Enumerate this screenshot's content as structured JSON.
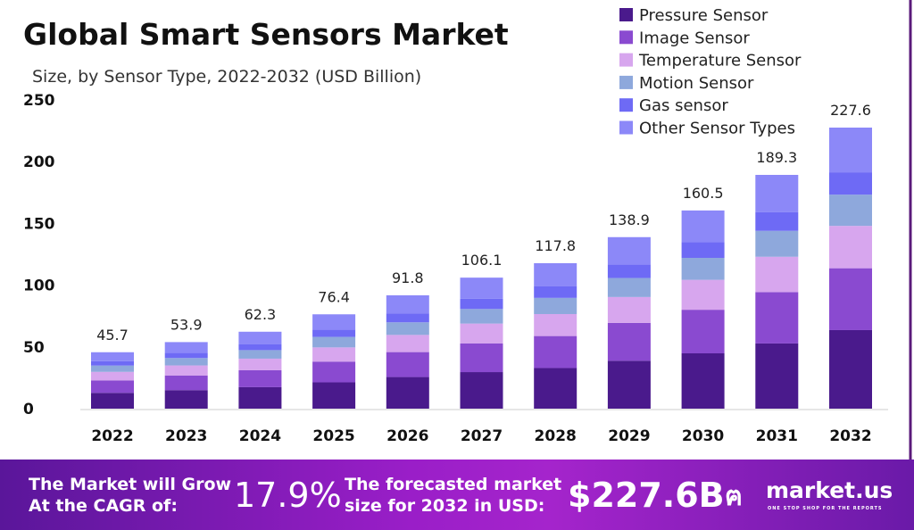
{
  "chart_data": {
    "type": "bar",
    "stacked": true,
    "title": "Global Smart Sensors Market",
    "subtitle": "Size, by Sensor Type, 2022-2032 (USD Billion)",
    "categories": [
      "2022",
      "2023",
      "2024",
      "2025",
      "2026",
      "2027",
      "2028",
      "2029",
      "2030",
      "2031",
      "2032"
    ],
    "totals": [
      "45.7",
      "53.9",
      "62.3",
      "76.4",
      "91.8",
      "106.1",
      "117.8",
      "138.9",
      "160.5",
      "189.3",
      "227.6"
    ],
    "series": [
      {
        "name": "Pressure Sensor",
        "color": "#4a1a8c",
        "values": [
          12.8,
          15.0,
          17.4,
          21.3,
          25.6,
          29.6,
          32.9,
          38.8,
          44.8,
          52.8,
          63.6
        ]
      },
      {
        "name": "Image Sensor",
        "color": "#8a4ad0",
        "values": [
          10.1,
          11.9,
          13.7,
          16.8,
          20.2,
          23.3,
          25.9,
          30.6,
          35.3,
          41.6,
          50.1
        ]
      },
      {
        "name": "Temperature Sensor",
        "color": "#d7a6ee",
        "values": [
          6.9,
          8.1,
          9.4,
          11.5,
          13.9,
          16.0,
          17.8,
          21.0,
          24.2,
          28.6,
          34.3
        ]
      },
      {
        "name": "Motion Sensor",
        "color": "#8ea8dc",
        "values": [
          5.1,
          6.0,
          6.9,
          8.5,
          10.2,
          11.8,
          13.1,
          15.4,
          17.8,
          21.0,
          25.3
        ]
      },
      {
        "name": "Gas sensor",
        "color": "#6e6af5",
        "values": [
          3.6,
          4.3,
          4.9,
          6.0,
          7.3,
          8.4,
          9.3,
          11.0,
          12.7,
          15.0,
          18.1
        ]
      },
      {
        "name": "Other Sensor Types",
        "color": "#8c88f8",
        "values": [
          7.2,
          8.6,
          10.0,
          12.3,
          14.6,
          17.0,
          18.8,
          22.1,
          25.7,
          30.3,
          36.2
        ]
      }
    ],
    "ylim": [
      0,
      250
    ],
    "yticks": [
      "0",
      "50",
      "100",
      "150",
      "200",
      "250"
    ],
    "grid": false,
    "legend": "top-right"
  },
  "banner": {
    "cagr_text_1": "The Market will Grow",
    "cagr_text_2": "At the CAGR of:",
    "cagr_value": "17.9%",
    "forecast_text_1": "The forecasted market",
    "forecast_text_2": "size for 2032 in USD:",
    "forecast_value": "$227.6B",
    "brand": "market.us",
    "brand_tagline": "ONE STOP SHOP FOR THE REPORTS"
  }
}
